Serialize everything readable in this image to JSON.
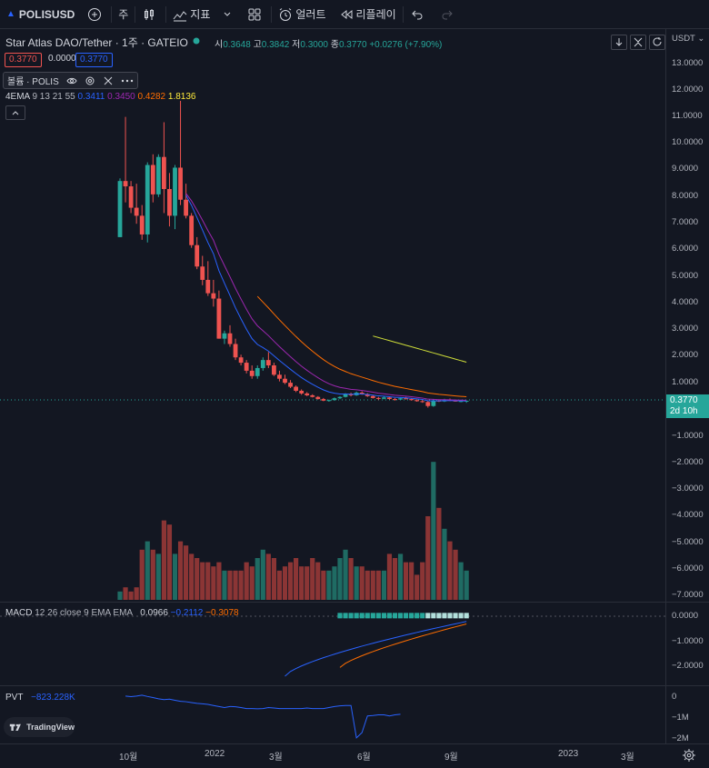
{
  "toolbar": {
    "symbol": "POLISUSD",
    "interval": "주",
    "indicators": "지표",
    "alert": "얼러트",
    "replay": "리플레이"
  },
  "legend": {
    "title": "Star Atlas DAO/Tether · 1주 · GATEIO",
    "ohlc": [
      {
        "k": "시",
        "v": "0.3648"
      },
      {
        "k": "고",
        "v": "0.3842"
      },
      {
        "k": "저",
        "v": "0.3000"
      },
      {
        "k": "종",
        "v": "0.3770"
      }
    ],
    "change": "+0.0276 (+7.90%)",
    "bid": "0.3770",
    "spread": "0.0000",
    "ask": "0.3770",
    "volume_label": "볼륨 · POLIS",
    "ema_label": "4EMA",
    "ema_params": "9 13 21 55",
    "ema_values": [
      "0.3411",
      "0.3450",
      "0.4282",
      "1.8136"
    ],
    "macd_label": "MACD",
    "macd_params": "12 26 close 9 EMA EMA",
    "macd_values": [
      "0.0966",
      "−0.2112",
      "−0.3078"
    ],
    "pvt_label": "PVT",
    "pvt_value": "−823.228K",
    "tv_logo": "TradingView"
  },
  "price_axis": {
    "currency": "USDT",
    "labels": [
      "13.0000",
      "12.0000",
      "11.0000",
      "10.0000",
      "9.0000",
      "8.0000",
      "7.0000",
      "6.0000",
      "5.0000",
      "4.0000",
      "3.0000",
      "2.0000",
      "1.0000",
      "−1.0000",
      "−2.0000",
      "−3.0000",
      "−4.0000",
      "−5.0000",
      "−6.0000",
      "−7.0000"
    ],
    "last_price": "0.3770",
    "countdown": "2d 10h",
    "macd_labels": [
      "0.0000",
      "−1.0000",
      "−2.0000"
    ],
    "pvt_labels": [
      "0",
      "−1M",
      "−2M"
    ]
  },
  "time_axis": [
    "10월",
    "2022",
    "3월",
    "6월",
    "9월",
    "2023",
    "3월"
  ],
  "colors": {
    "up": "#26a69a",
    "down": "#ef5350",
    "ema9": "#2962ff",
    "ema13": "#9c27b0",
    "ema21": "#ff6d00",
    "ema55": "#cddc39",
    "vol_up": "#1f6b63",
    "vol_down": "#8b3535",
    "macd": "#2962ff",
    "signal": "#ff6d00",
    "pvt": "#2962ff"
  },
  "chart_data": {
    "type": "candlestick",
    "interval": "1W",
    "ohlc": [
      [
        6.5,
        8.7,
        6.5,
        8.6
      ],
      [
        8.6,
        11,
        7.8,
        8.4
      ],
      [
        8.4,
        8.6,
        7.4,
        7.6
      ],
      [
        7.6,
        8.5,
        7.0,
        7.3
      ],
      [
        7.3,
        7.7,
        6.4,
        6.6
      ],
      [
        6.6,
        9.3,
        6.3,
        9.2
      ],
      [
        9.2,
        9.6,
        7.8,
        8.1
      ],
      [
        8.1,
        9.6,
        8.0,
        9.5
      ],
      [
        9.5,
        10.8,
        7.4,
        8.3
      ],
      [
        8.3,
        8.9,
        6.9,
        7.3
      ],
      [
        7.3,
        9.2,
        6.8,
        9.1
      ],
      [
        9.1,
        11.6,
        7.7,
        7.9
      ],
      [
        7.9,
        8.5,
        7.2,
        7.3
      ],
      [
        7.3,
        7.4,
        6.1,
        6.2
      ],
      [
        6.2,
        6.5,
        5.3,
        5.4
      ],
      [
        5.4,
        5.8,
        4.7,
        4.9
      ],
      [
        4.9,
        5.6,
        4.3,
        4.4
      ],
      [
        4.4,
        4.9,
        3.9,
        4.2
      ],
      [
        4.2,
        4.5,
        2.7,
        2.7
      ],
      [
        2.7,
        3.0,
        2.5,
        2.9
      ],
      [
        2.9,
        3.2,
        2.4,
        2.5
      ],
      [
        2.5,
        2.7,
        1.9,
        2.0
      ],
      [
        2.0,
        2.1,
        1.7,
        1.8
      ],
      [
        1.8,
        1.9,
        1.4,
        1.5
      ],
      [
        1.5,
        1.7,
        1.2,
        1.3
      ],
      [
        1.3,
        1.7,
        1.2,
        1.6
      ],
      [
        1.6,
        2.0,
        1.5,
        1.9
      ],
      [
        1.9,
        2.2,
        1.6,
        1.7
      ],
      [
        1.7,
        1.8,
        1.3,
        1.35
      ],
      [
        1.35,
        1.5,
        1.1,
        1.2
      ],
      [
        1.2,
        1.35,
        1.0,
        1.05
      ],
      [
        1.05,
        1.15,
        0.85,
        0.9
      ],
      [
        0.9,
        0.95,
        0.7,
        0.75
      ],
      [
        0.75,
        0.8,
        0.6,
        0.65
      ],
      [
        0.65,
        0.7,
        0.55,
        0.58
      ],
      [
        0.58,
        0.62,
        0.5,
        0.52
      ],
      [
        0.52,
        0.55,
        0.42,
        0.44
      ],
      [
        0.44,
        0.48,
        0.36,
        0.38
      ],
      [
        0.38,
        0.42,
        0.34,
        0.4
      ],
      [
        0.4,
        0.5,
        0.38,
        0.47
      ],
      [
        0.47,
        0.55,
        0.44,
        0.52
      ],
      [
        0.52,
        0.66,
        0.5,
        0.62
      ],
      [
        0.62,
        0.68,
        0.54,
        0.58
      ],
      [
        0.58,
        0.72,
        0.56,
        0.68
      ],
      [
        0.68,
        0.73,
        0.6,
        0.62
      ],
      [
        0.62,
        0.66,
        0.52,
        0.55
      ],
      [
        0.55,
        0.58,
        0.46,
        0.48
      ],
      [
        0.48,
        0.52,
        0.4,
        0.45
      ],
      [
        0.45,
        0.55,
        0.43,
        0.5
      ],
      [
        0.5,
        0.54,
        0.42,
        0.44
      ],
      [
        0.44,
        0.48,
        0.38,
        0.42
      ],
      [
        0.42,
        0.5,
        0.4,
        0.47
      ],
      [
        0.47,
        0.52,
        0.42,
        0.44
      ],
      [
        0.44,
        0.46,
        0.38,
        0.4
      ],
      [
        0.4,
        0.43,
        0.34,
        0.36
      ],
      [
        0.36,
        0.4,
        0.3,
        0.33
      ],
      [
        0.33,
        0.36,
        0.12,
        0.18
      ],
      [
        0.18,
        0.42,
        0.15,
        0.38
      ],
      [
        0.38,
        0.43,
        0.33,
        0.35
      ],
      [
        0.35,
        0.45,
        0.33,
        0.42
      ],
      [
        0.42,
        0.46,
        0.36,
        0.38
      ],
      [
        0.38,
        0.42,
        0.34,
        0.36
      ],
      [
        0.36,
        0.39,
        0.32,
        0.3648
      ],
      [
        0.3648,
        0.3842,
        0.3,
        0.377
      ]
    ],
    "volume": [
      2,
      3,
      2,
      3,
      12,
      14,
      12,
      11,
      19,
      18,
      11,
      14,
      13,
      11,
      10,
      9,
      9,
      8,
      9,
      7,
      7,
      7,
      7,
      9,
      8,
      10,
      12,
      11,
      10,
      7,
      8,
      9,
      10,
      8,
      8,
      10,
      9,
      7,
      7,
      8,
      10,
      12,
      10,
      8,
      8,
      7,
      7,
      7,
      7,
      11,
      10,
      11,
      9,
      9,
      6,
      9,
      20,
      33,
      22,
      17,
      14,
      12,
      9,
      7
    ],
    "ema55_visible_values": [
      2.8,
      1.82
    ],
    "macd_scale": {
      "ylim": [
        -2.5,
        0.2
      ]
    },
    "pvt_scale": {
      "ylim": [
        -2000000,
        200000
      ]
    }
  }
}
